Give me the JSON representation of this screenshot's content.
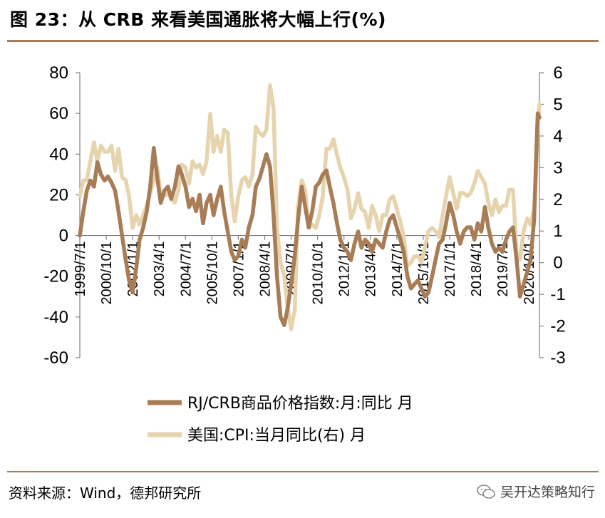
{
  "header": {
    "title": "图 23：从 CRB 来看美国通胀将大幅上行(%)"
  },
  "footer": {
    "source": "资料来源：Wind，德邦研究所",
    "watermark": "吴开达策略知行"
  },
  "colors": {
    "rule": "#a87c55",
    "crb": "#a87c55",
    "cpi": "#e6d4ae",
    "axis": "#808080"
  },
  "chart_data": {
    "type": "line",
    "title": "",
    "y_left": {
      "min": -60,
      "max": 80,
      "ticks": [
        80,
        60,
        40,
        20,
        0,
        -20,
        -40,
        -60
      ]
    },
    "y_right": {
      "min": -3,
      "max": 6,
      "ticks": [
        6,
        5,
        4,
        3,
        2,
        1,
        0,
        -1,
        -2,
        -3
      ]
    },
    "x_range": [
      1999.5,
      2021.25
    ],
    "x_tick_labels": [
      {
        "label": "1999/7/1",
        "t": 1999.5
      },
      {
        "label": "2000/10/1",
        "t": 2000.75
      },
      {
        "label": "2002/1/1",
        "t": 2002.0
      },
      {
        "label": "2003/4/1",
        "t": 2003.25
      },
      {
        "label": "2004/7/1",
        "t": 2004.5
      },
      {
        "label": "2005/10/1",
        "t": 2005.75
      },
      {
        "label": "2007/1/1",
        "t": 2007.0
      },
      {
        "label": "2008/4/1",
        "t": 2008.25
      },
      {
        "label": "2009/7/1",
        "t": 2009.5
      },
      {
        "label": "2010/10/1",
        "t": 2010.75
      },
      {
        "label": "2012/1/1",
        "t": 2012.0
      },
      {
        "label": "2013/4/1",
        "t": 2013.25
      },
      {
        "label": "2014/7/1",
        "t": 2014.5
      },
      {
        "label": "2015/10/1",
        "t": 2015.75
      },
      {
        "label": "2017/1/1",
        "t": 2017.0
      },
      {
        "label": "2018/4/1",
        "t": 2018.25
      },
      {
        "label": "2019/7/1",
        "t": 2019.5
      },
      {
        "label": "2020/10/1",
        "t": 2020.75
      }
    ],
    "series": [
      {
        "name": "RJ/CRB商品价格指数:月:同比 月",
        "axis": "left",
        "points": [
          [
            1999.5,
            0
          ],
          [
            1999.67,
            12
          ],
          [
            1999.83,
            22
          ],
          [
            2000.0,
            27
          ],
          [
            2000.17,
            24
          ],
          [
            2000.33,
            36
          ],
          [
            2000.5,
            30
          ],
          [
            2000.67,
            27
          ],
          [
            2000.83,
            29
          ],
          [
            2001.0,
            26
          ],
          [
            2001.17,
            22
          ],
          [
            2001.33,
            12
          ],
          [
            2001.5,
            0
          ],
          [
            2001.67,
            -12
          ],
          [
            2001.83,
            -22
          ],
          [
            2002.0,
            -28
          ],
          [
            2002.17,
            -16
          ],
          [
            2002.33,
            -2
          ],
          [
            2002.5,
            4
          ],
          [
            2002.67,
            12
          ],
          [
            2002.83,
            24
          ],
          [
            2003.0,
            43
          ],
          [
            2003.17,
            28
          ],
          [
            2003.33,
            16
          ],
          [
            2003.5,
            22
          ],
          [
            2003.67,
            24
          ],
          [
            2003.83,
            18
          ],
          [
            2004.0,
            24
          ],
          [
            2004.17,
            34
          ],
          [
            2004.33,
            30
          ],
          [
            2004.5,
            24
          ],
          [
            2004.67,
            14
          ],
          [
            2004.83,
            18
          ],
          [
            2005.0,
            12
          ],
          [
            2005.17,
            20
          ],
          [
            2005.33,
            6
          ],
          [
            2005.5,
            16
          ],
          [
            2005.67,
            20
          ],
          [
            2005.83,
            10
          ],
          [
            2006.0,
            18
          ],
          [
            2006.17,
            24
          ],
          [
            2006.33,
            12
          ],
          [
            2006.5,
            2
          ],
          [
            2006.67,
            -8
          ],
          [
            2006.83,
            -12
          ],
          [
            2007.0,
            -10
          ],
          [
            2007.17,
            -2
          ],
          [
            2007.33,
            -6
          ],
          [
            2007.5,
            4
          ],
          [
            2007.67,
            10
          ],
          [
            2007.83,
            24
          ],
          [
            2008.0,
            28
          ],
          [
            2008.17,
            34
          ],
          [
            2008.33,
            40
          ],
          [
            2008.5,
            34
          ],
          [
            2008.67,
            10
          ],
          [
            2008.83,
            -20
          ],
          [
            2009.0,
            -40
          ],
          [
            2009.17,
            -44
          ],
          [
            2009.33,
            -36
          ],
          [
            2009.5,
            -24
          ],
          [
            2009.67,
            -10
          ],
          [
            2009.83,
            8
          ],
          [
            2010.0,
            24
          ],
          [
            2010.17,
            14
          ],
          [
            2010.33,
            4
          ],
          [
            2010.5,
            12
          ],
          [
            2010.67,
            24
          ],
          [
            2010.83,
            26
          ],
          [
            2011.0,
            30
          ],
          [
            2011.17,
            32
          ],
          [
            2011.33,
            24
          ],
          [
            2011.5,
            16
          ],
          [
            2011.67,
            6
          ],
          [
            2011.83,
            -2
          ],
          [
            2012.0,
            -6
          ],
          [
            2012.17,
            -8
          ],
          [
            2012.33,
            -12
          ],
          [
            2012.5,
            -4
          ],
          [
            2012.67,
            2
          ],
          [
            2012.83,
            -6
          ],
          [
            2013.0,
            -2
          ],
          [
            2013.17,
            -4
          ],
          [
            2013.33,
            -8
          ],
          [
            2013.5,
            -2
          ],
          [
            2013.67,
            -4
          ],
          [
            2013.83,
            -6
          ],
          [
            2014.0,
            2
          ],
          [
            2014.17,
            8
          ],
          [
            2014.33,
            10
          ],
          [
            2014.5,
            4
          ],
          [
            2014.67,
            -2
          ],
          [
            2014.83,
            -8
          ],
          [
            2015.0,
            -20
          ],
          [
            2015.17,
            -26
          ],
          [
            2015.33,
            -24
          ],
          [
            2015.5,
            -22
          ],
          [
            2015.67,
            -26
          ],
          [
            2015.83,
            -30
          ],
          [
            2016.0,
            -28
          ],
          [
            2016.17,
            -20
          ],
          [
            2016.33,
            -12
          ],
          [
            2016.5,
            -4
          ],
          [
            2016.67,
            -2
          ],
          [
            2016.83,
            6
          ],
          [
            2017.0,
            16
          ],
          [
            2017.17,
            10
          ],
          [
            2017.33,
            2
          ],
          [
            2017.5,
            -4
          ],
          [
            2017.67,
            2
          ],
          [
            2017.83,
            4
          ],
          [
            2018.0,
            4
          ],
          [
            2018.17,
            -2
          ],
          [
            2018.33,
            6
          ],
          [
            2018.5,
            2
          ],
          [
            2018.67,
            14
          ],
          [
            2018.83,
            4
          ],
          [
            2019.0,
            -4
          ],
          [
            2019.17,
            -8
          ],
          [
            2019.33,
            -6
          ],
          [
            2019.5,
            -8
          ],
          [
            2019.67,
            -2
          ],
          [
            2019.83,
            2
          ],
          [
            2020.0,
            4
          ],
          [
            2020.17,
            -12
          ],
          [
            2020.33,
            -30
          ],
          [
            2020.5,
            -24
          ],
          [
            2020.67,
            -18
          ],
          [
            2020.83,
            -12
          ],
          [
            2021.0,
            8
          ],
          [
            2021.08,
            35
          ],
          [
            2021.17,
            60
          ],
          [
            2021.25,
            58
          ]
        ]
      },
      {
        "name": "美国:CPI:当月同比(右) 月",
        "axis": "right",
        "points": [
          [
            1999.5,
            2.1
          ],
          [
            1999.67,
            2.6
          ],
          [
            1999.83,
            2.6
          ],
          [
            2000.0,
            3.2
          ],
          [
            2000.17,
            3.8
          ],
          [
            2000.33,
            3.2
          ],
          [
            2000.5,
            3.7
          ],
          [
            2000.67,
            3.5
          ],
          [
            2000.83,
            3.5
          ],
          [
            2001.0,
            3.7
          ],
          [
            2001.17,
            2.9
          ],
          [
            2001.33,
            3.6
          ],
          [
            2001.5,
            2.7
          ],
          [
            2001.67,
            2.6
          ],
          [
            2001.83,
            2.1
          ],
          [
            2002.0,
            1.1
          ],
          [
            2002.17,
            1.5
          ],
          [
            2002.33,
            1.2
          ],
          [
            2002.5,
            1.5
          ],
          [
            2002.67,
            1.8
          ],
          [
            2002.83,
            2.2
          ],
          [
            2003.0,
            2.6
          ],
          [
            2003.17,
            3.0
          ],
          [
            2003.33,
            2.1
          ],
          [
            2003.5,
            2.1
          ],
          [
            2003.67,
            2.2
          ],
          [
            2003.83,
            2.0
          ],
          [
            2004.0,
            1.9
          ],
          [
            2004.17,
            2.3
          ],
          [
            2004.33,
            3.1
          ],
          [
            2004.5,
            3.0
          ],
          [
            2004.67,
            2.5
          ],
          [
            2004.83,
            3.2
          ],
          [
            2005.0,
            3.0
          ],
          [
            2005.17,
            3.1
          ],
          [
            2005.33,
            2.8
          ],
          [
            2005.5,
            3.2
          ],
          [
            2005.67,
            4.7
          ],
          [
            2005.83,
            3.5
          ],
          [
            2006.0,
            4.0
          ],
          [
            2006.17,
            3.5
          ],
          [
            2006.33,
            4.2
          ],
          [
            2006.5,
            4.1
          ],
          [
            2006.67,
            2.1
          ],
          [
            2006.83,
            1.3
          ],
          [
            2007.0,
            2.1
          ],
          [
            2007.17,
            2.6
          ],
          [
            2007.33,
            2.7
          ],
          [
            2007.5,
            2.4
          ],
          [
            2007.67,
            2.8
          ],
          [
            2007.83,
            4.3
          ],
          [
            2008.0,
            4.1
          ],
          [
            2008.17,
            4.0
          ],
          [
            2008.33,
            4.2
          ],
          [
            2008.5,
            5.6
          ],
          [
            2008.67,
            4.9
          ],
          [
            2008.83,
            1.1
          ],
          [
            2009.0,
            0.0
          ],
          [
            2009.17,
            -0.4
          ],
          [
            2009.33,
            -1.4
          ],
          [
            2009.5,
            -2.1
          ],
          [
            2009.67,
            -1.5
          ],
          [
            2009.83,
            1.8
          ],
          [
            2010.0,
            2.6
          ],
          [
            2010.17,
            2.3
          ],
          [
            2010.33,
            1.1
          ],
          [
            2010.5,
            1.2
          ],
          [
            2010.67,
            1.1
          ],
          [
            2010.83,
            1.5
          ],
          [
            2011.0,
            2.1
          ],
          [
            2011.17,
            3.6
          ],
          [
            2011.33,
            3.6
          ],
          [
            2011.5,
            3.9
          ],
          [
            2011.67,
            3.4
          ],
          [
            2011.83,
            3.0
          ],
          [
            2012.0,
            2.7
          ],
          [
            2012.17,
            2.3
          ],
          [
            2012.33,
            1.4
          ],
          [
            2012.5,
            1.7
          ],
          [
            2012.67,
            2.2
          ],
          [
            2012.83,
            1.7
          ],
          [
            2013.0,
            1.6
          ],
          [
            2013.17,
            1.1
          ],
          [
            2013.33,
            1.8
          ],
          [
            2013.5,
            1.5
          ],
          [
            2013.67,
            1.0
          ],
          [
            2013.83,
            1.5
          ],
          [
            2014.0,
            1.5
          ],
          [
            2014.17,
            2.0
          ],
          [
            2014.33,
            2.1
          ],
          [
            2014.5,
            1.7
          ],
          [
            2014.67,
            1.3
          ],
          [
            2014.83,
            0.8
          ],
          [
            2015.0,
            -0.1
          ],
          [
            2015.17,
            0.0
          ],
          [
            2015.33,
            0.2
          ],
          [
            2015.5,
            0.2
          ],
          [
            2015.67,
            0.0
          ],
          [
            2015.83,
            0.5
          ],
          [
            2016.0,
            1.0
          ],
          [
            2016.17,
            1.1
          ],
          [
            2016.33,
            1.0
          ],
          [
            2016.5,
            0.8
          ],
          [
            2016.67,
            1.5
          ],
          [
            2016.83,
            2.1
          ],
          [
            2017.0,
            2.7
          ],
          [
            2017.17,
            2.2
          ],
          [
            2017.33,
            1.7
          ],
          [
            2017.5,
            2.2
          ],
          [
            2017.67,
            2.2
          ],
          [
            2017.83,
            2.1
          ],
          [
            2018.0,
            2.2
          ],
          [
            2018.17,
            2.5
          ],
          [
            2018.33,
            2.9
          ],
          [
            2018.5,
            2.7
          ],
          [
            2018.67,
            2.5
          ],
          [
            2018.83,
            1.9
          ],
          [
            2019.0,
            1.5
          ],
          [
            2019.17,
            2.0
          ],
          [
            2019.33,
            1.6
          ],
          [
            2019.5,
            1.8
          ],
          [
            2019.67,
            1.8
          ],
          [
            2019.83,
            2.3
          ],
          [
            2020.0,
            2.3
          ],
          [
            2020.17,
            0.3
          ],
          [
            2020.33,
            0.1
          ],
          [
            2020.5,
            1.0
          ],
          [
            2020.67,
            1.4
          ],
          [
            2020.83,
            1.2
          ],
          [
            2021.0,
            1.7
          ],
          [
            2021.08,
            2.6
          ],
          [
            2021.17,
            4.2
          ],
          [
            2021.25,
            5.0
          ]
        ]
      }
    ]
  }
}
